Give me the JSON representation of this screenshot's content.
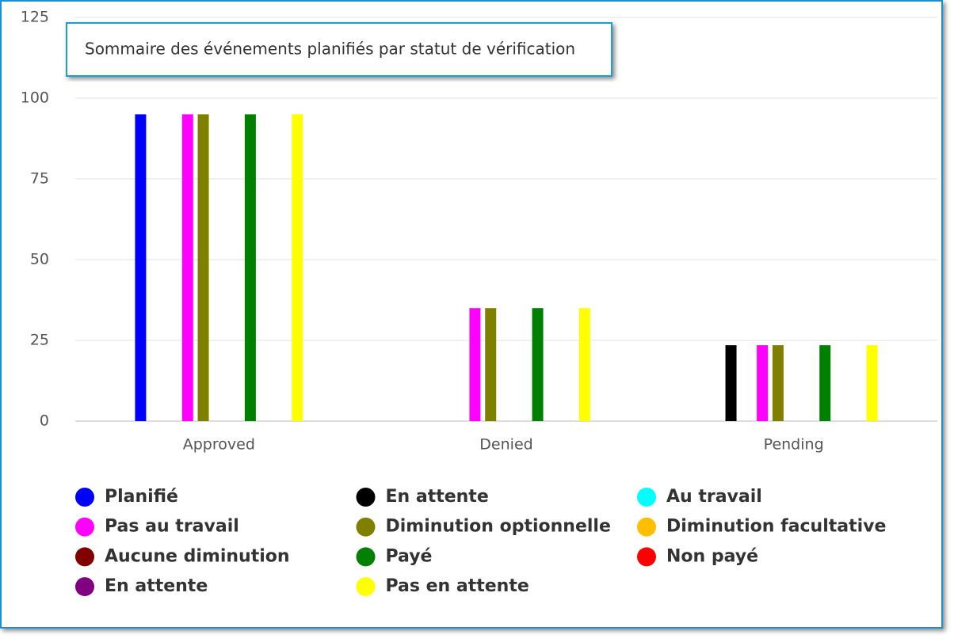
{
  "chart_data": {
    "type": "bar",
    "title": "Sommaire des événements planifiés par statut de vérification",
    "categories": [
      "Approved",
      "Denied",
      "Pending"
    ],
    "series": [
      {
        "name": "Planifié",
        "color": "#0000ff",
        "values": [
          95,
          null,
          null
        ]
      },
      {
        "name": "En attente",
        "color": "#000000",
        "values": [
          null,
          null,
          23.5
        ]
      },
      {
        "name": "Au travail",
        "color": "#00ffff",
        "values": [
          null,
          null,
          null
        ]
      },
      {
        "name": "Pas au travail",
        "color": "#ff00ff",
        "values": [
          95,
          35,
          23.5
        ]
      },
      {
        "name": "Diminution optionnelle",
        "color": "#808000",
        "values": [
          95,
          35,
          23.5
        ]
      },
      {
        "name": "Diminution facultative",
        "color": "#ffbf00",
        "values": [
          null,
          null,
          null
        ]
      },
      {
        "name": "Aucune diminution",
        "color": "#800000",
        "values": [
          null,
          null,
          null
        ]
      },
      {
        "name": "Payé",
        "color": "#008000",
        "values": [
          95,
          35,
          23.5
        ]
      },
      {
        "name": "Non payé",
        "color": "#ff0000",
        "values": [
          null,
          null,
          null
        ]
      },
      {
        "name": "En attente",
        "color": "#800080",
        "values": [
          null,
          null,
          null
        ]
      },
      {
        "name": "Pas en attente",
        "color": "#ffff00",
        "values": [
          95,
          35,
          23.5
        ]
      }
    ],
    "ylim": [
      0,
      125
    ],
    "yticks": [
      0,
      25,
      50,
      75,
      100,
      125
    ],
    "grid": true,
    "legend": "bottom"
  }
}
